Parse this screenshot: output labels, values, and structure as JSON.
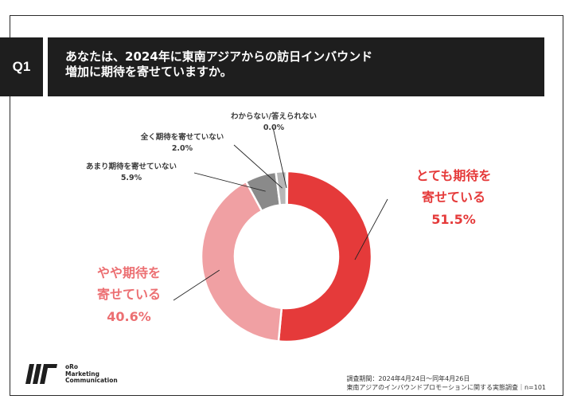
{
  "question": {
    "badge": "Q1",
    "line1": "あなたは、2024年に東南アジアからの訪日インバウンド",
    "line2": "増加に期待を寄せていますか。"
  },
  "chart_data": {
    "type": "pie",
    "donut": true,
    "categories": [
      "とても期待を寄せている",
      "やや期待を寄せている",
      "あまり期待を寄せていない",
      "全く期待を寄せていない",
      "わからない/答えられない"
    ],
    "values": [
      51.5,
      40.6,
      5.9,
      2.0,
      0.0
    ],
    "value_labels": [
      "51.5%",
      "40.6%",
      "5.9%",
      "2.0%",
      "0.0%"
    ],
    "label_lines": [
      [
        "とても期待を",
        "寄せている"
      ],
      [
        "やや期待を",
        "寄せている"
      ],
      [
        "あまり期待を寄せていない"
      ],
      [
        "全く期待を寄せていない"
      ],
      [
        "わからない/答えられない"
      ]
    ],
    "colors": [
      "#e53a3a",
      "#f0a0a3",
      "#8a8a8a",
      "#b7b7b7",
      "#d9d9d9"
    ],
    "title": "",
    "n": 101
  },
  "brand": {
    "name_lines": [
      "oRo",
      "Marketing",
      "Communication"
    ]
  },
  "footer": {
    "period": "調査期間：2024年4月24日〜同年4月26日",
    "survey": "東南アジアのインバウンドプロモーションに関する実態調査｜n=101"
  }
}
